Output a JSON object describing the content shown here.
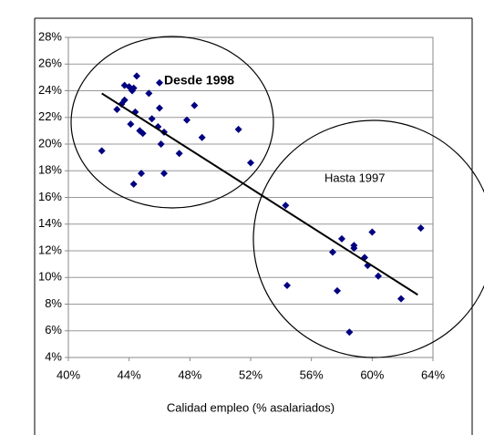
{
  "chart_data": {
    "type": "scatter",
    "x_label": "Calidad empleo (% asalariados)",
    "color": "#000080",
    "grid": true,
    "xlim": [
      40,
      64
    ],
    "ylim": [
      4,
      28
    ],
    "xticks": [
      {
        "value": 40,
        "label": "40%"
      },
      {
        "value": 44,
        "label": "44%"
      },
      {
        "value": 48,
        "label": "48%"
      },
      {
        "value": 52,
        "label": "52%"
      },
      {
        "value": 56,
        "label": "56%"
      },
      {
        "value": 60,
        "label": "60%"
      },
      {
        "value": 64,
        "label": "64%"
      }
    ],
    "yticks": [
      {
        "value": 4,
        "label": "4%"
      },
      {
        "value": 6,
        "label": "6%"
      },
      {
        "value": 8,
        "label": "8%"
      },
      {
        "value": 10,
        "label": "10%"
      },
      {
        "value": 12,
        "label": "12%"
      },
      {
        "value": 14,
        "label": "14%"
      },
      {
        "value": 16,
        "label": "16%"
      },
      {
        "value": 18,
        "label": "18%"
      },
      {
        "value": 20,
        "label": "20%"
      },
      {
        "value": 22,
        "label": "22%"
      },
      {
        "value": 24,
        "label": "24%"
      },
      {
        "value": 26,
        "label": "26%"
      },
      {
        "value": 28,
        "label": "28%"
      }
    ],
    "x": [
      42.2,
      43.2,
      43.5,
      43.7,
      43.7,
      44.0,
      44.1,
      44.2,
      44.3,
      44.3,
      44.4,
      44.5,
      44.7,
      44.8,
      44.9,
      45.3,
      45.5,
      45.9,
      46.0,
      46.0,
      46.1,
      46.3,
      46.3,
      47.3,
      47.8,
      48.3,
      48.8,
      51.2,
      52.0,
      54.3,
      54.4,
      57.4,
      57.7,
      58.0,
      58.5,
      58.8,
      58.8,
      59.5,
      59.7,
      60.0,
      60.4,
      61.9,
      63.2
    ],
    "values": [
      19.5,
      22.6,
      23.0,
      23.3,
      24.4,
      24.3,
      21.5,
      24.0,
      17.0,
      24.2,
      22.4,
      25.1,
      21.0,
      17.8,
      20.8,
      23.8,
      21.9,
      21.3,
      22.7,
      24.6,
      20.0,
      20.9,
      17.8,
      19.3,
      21.8,
      22.9,
      20.5,
      21.1,
      18.6,
      15.4,
      9.4,
      11.9,
      9.0,
      12.9,
      5.9,
      12.2,
      12.4,
      11.5,
      10.9,
      13.4,
      10.1,
      8.4,
      13.7
    ],
    "trendline": {
      "x": [
        42.2,
        63.0
      ],
      "values": [
        23.8,
        8.7
      ]
    },
    "annotations": [
      "Desde 1998",
      "Hasta 1997"
    ]
  }
}
